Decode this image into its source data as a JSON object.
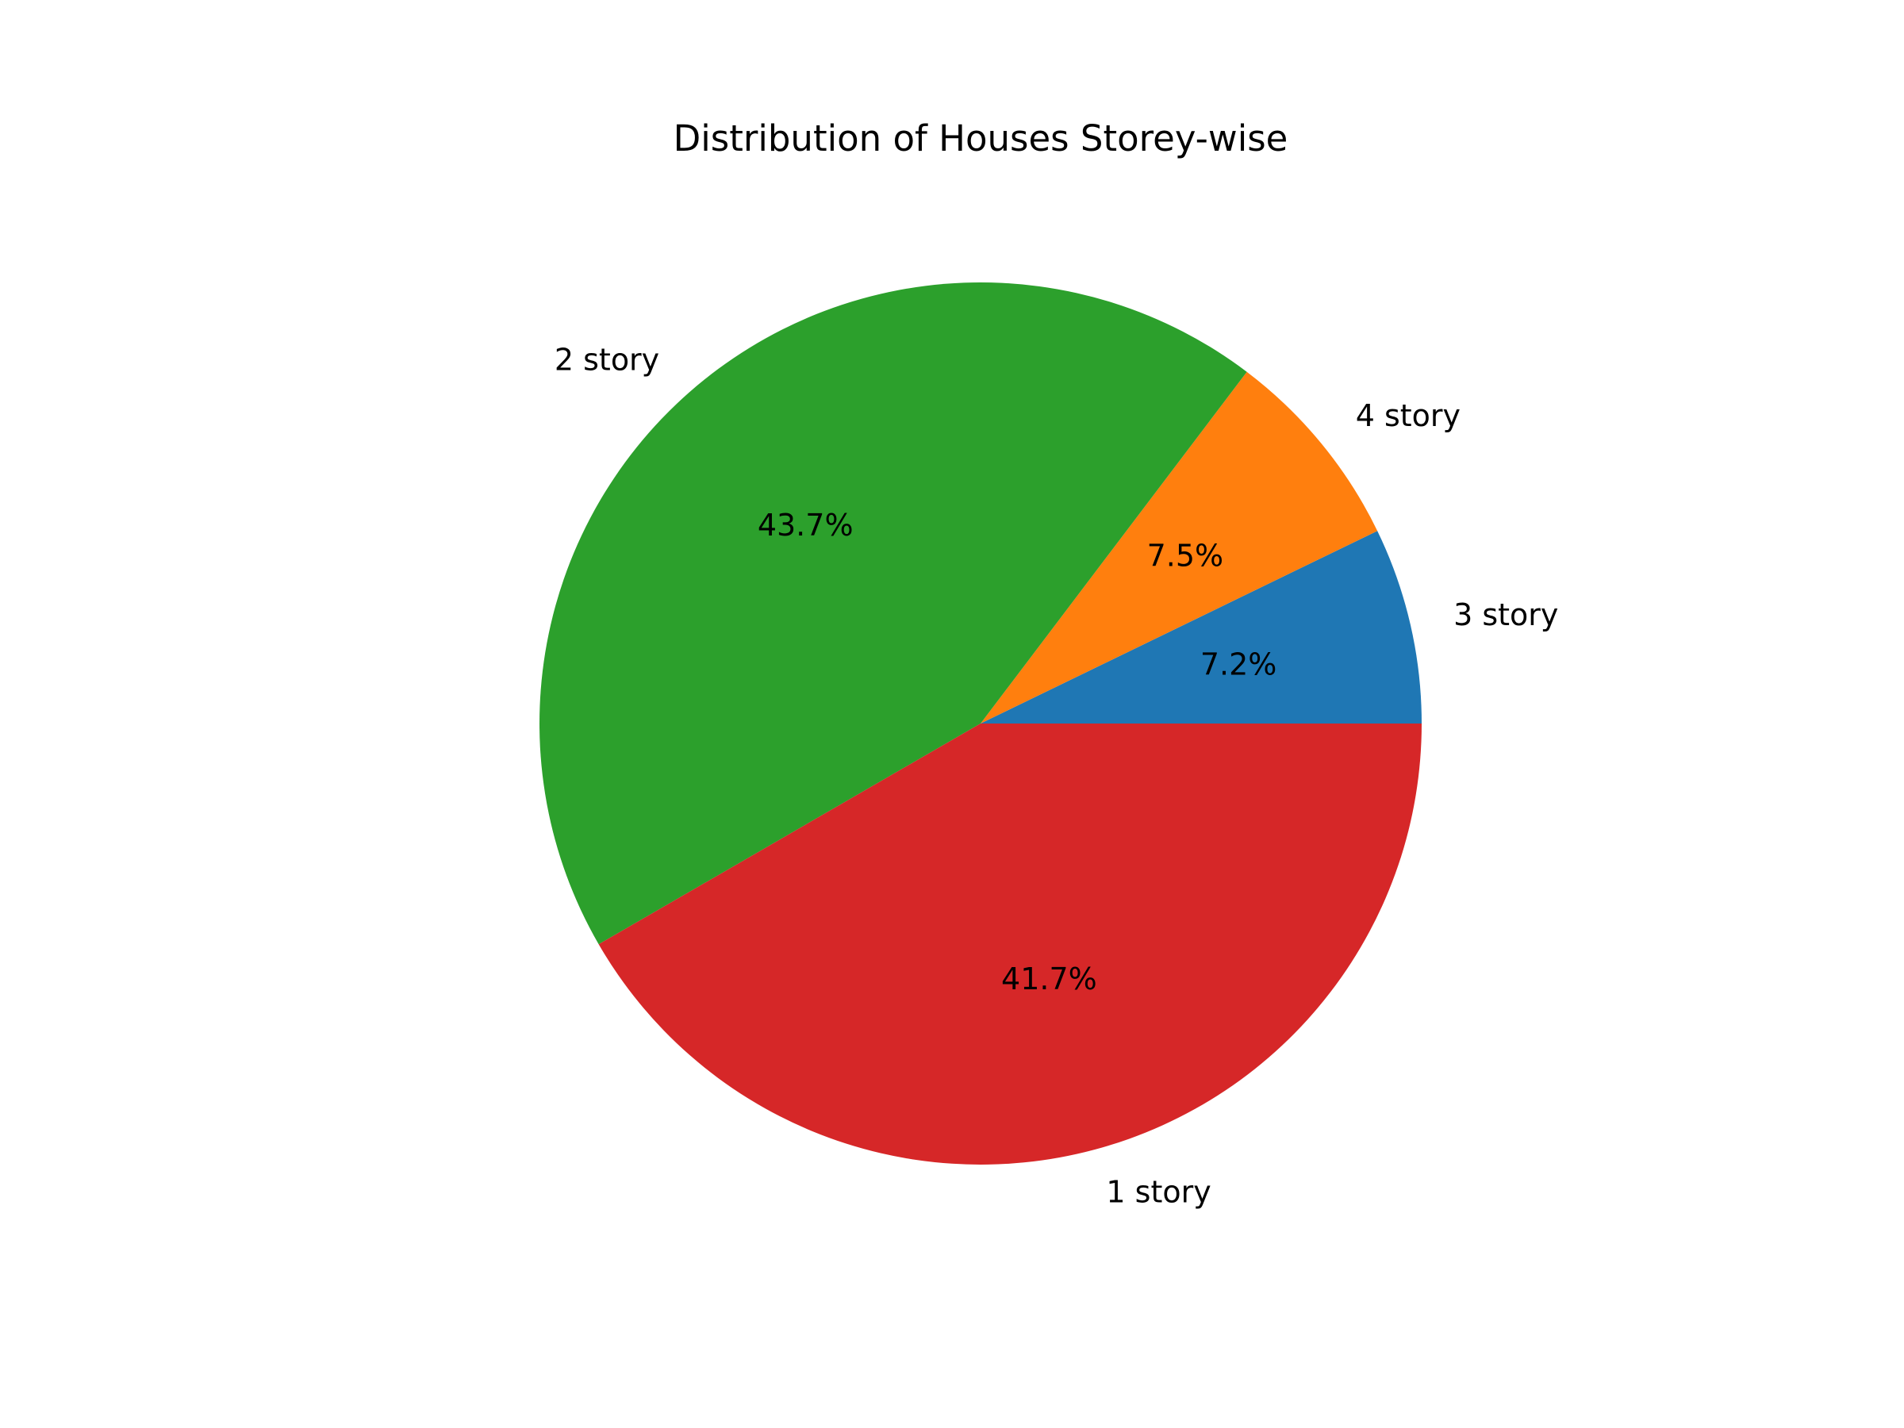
{
  "chart_data": {
    "type": "pie",
    "title": "Distribution of Houses Storey-wise",
    "start_angle_deg": 0,
    "direction": "counterclockwise",
    "slices": [
      {
        "label": "3 story",
        "value": 7.2,
        "pct_label": "7.2%",
        "color": "#1f77b4"
      },
      {
        "label": "4 story",
        "value": 7.5,
        "pct_label": "7.5%",
        "color": "#ff7f0e"
      },
      {
        "label": "2 story",
        "value": 43.7,
        "pct_label": "43.7%",
        "color": "#2ca02c"
      },
      {
        "label": "1 story",
        "value": 41.7,
        "pct_label": "41.7%",
        "color": "#d62728"
      }
    ],
    "legend": "none",
    "grid": false
  }
}
